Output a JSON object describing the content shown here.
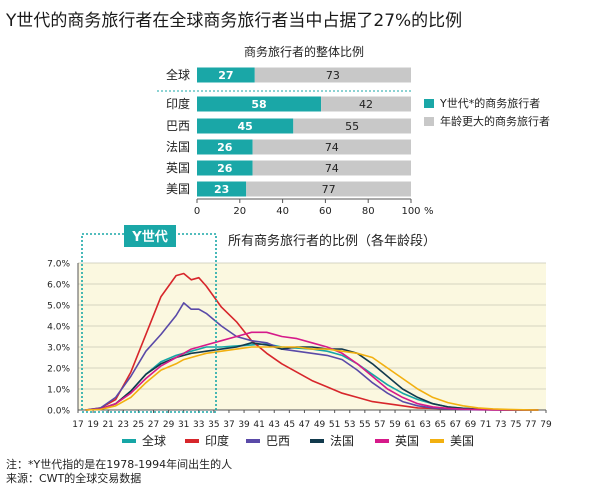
{
  "title": "Y世代的商务旅行者在全球商务旅行者当中占据了27%的比例",
  "colors": {
    "teal": "#1aa7a7",
    "gray": "#c8c8c8",
    "plot_bg": "#fbf8e0",
    "全球": "#16a6a6",
    "印度": "#d7262b",
    "巴西": "#5a4aa8",
    "法国": "#123a4d",
    "英国": "#d61a8a",
    "美国": "#f2b010"
  },
  "chart_data": [
    {
      "type": "bar",
      "stacked": true,
      "orientation": "horizontal",
      "title": "商务旅行者的整体比例",
      "categories": [
        "全球",
        "印度",
        "巴西",
        "法国",
        "英国",
        "美国"
      ],
      "series": [
        {
          "name": "Y世代*的商务旅行者",
          "values": [
            27,
            58,
            45,
            26,
            26,
            23
          ]
        },
        {
          "name": "年龄更大的商务旅行者",
          "values": [
            73,
            42,
            55,
            74,
            74,
            77
          ]
        }
      ],
      "xlim": [
        0,
        100
      ],
      "xticks": [
        "0",
        "20",
        "40",
        "60",
        "80",
        "100"
      ],
      "xunit": "%",
      "legend_position": "right"
    },
    {
      "type": "line",
      "title": "所有商务旅行者的比例（各年龄段）",
      "annotation": "Y世代",
      "annotation_range": [
        17,
        35
      ],
      "xlim": [
        17,
        79
      ],
      "ylim": [
        0,
        7
      ],
      "xticks": [
        "17",
        "19",
        "21",
        "23",
        "25",
        "27",
        "29",
        "31",
        "33",
        "35",
        "37",
        "39",
        "41",
        "43",
        "45",
        "47",
        "49",
        "51",
        "53",
        "55",
        "57",
        "59",
        "61",
        "63",
        "65",
        "67",
        "69",
        "71",
        "73",
        "75",
        "77",
        "79"
      ],
      "yticks": [
        "0.0%",
        "1.0%",
        "2.0%",
        "3.0%",
        "4.0%",
        "5.0%",
        "6.0%",
        "7.0%"
      ],
      "x": [
        18,
        20,
        22,
        24,
        26,
        28,
        30,
        31,
        32,
        33,
        34,
        36,
        38,
        40,
        42,
        44,
        46,
        48,
        50,
        52,
        54,
        56,
        58,
        60,
        62,
        64,
        66,
        68,
        70,
        72,
        74,
        76,
        78
      ],
      "series": [
        {
          "name": "全球",
          "values": [
            0,
            0.05,
            0.3,
            0.9,
            1.7,
            2.3,
            2.6,
            2.7,
            2.8,
            2.9,
            3.0,
            3.0,
            3.05,
            3.1,
            3.15,
            3.0,
            2.95,
            2.9,
            2.8,
            2.6,
            2.2,
            1.7,
            1.2,
            0.8,
            0.5,
            0.3,
            0.15,
            0.08,
            0.04,
            0.02,
            0.01,
            0,
            0
          ]
        },
        {
          "name": "印度",
          "values": [
            0,
            0.1,
            0.5,
            1.8,
            3.6,
            5.4,
            6.4,
            6.5,
            6.2,
            6.3,
            5.9,
            4.9,
            4.2,
            3.3,
            2.7,
            2.2,
            1.8,
            1.4,
            1.1,
            0.8,
            0.6,
            0.4,
            0.3,
            0.2,
            0.1,
            0.08,
            0.05,
            0.03,
            0.02,
            0.01,
            0,
            0,
            0
          ]
        },
        {
          "name": "巴西",
          "values": [
            0,
            0.1,
            0.6,
            1.6,
            2.8,
            3.6,
            4.5,
            5.1,
            4.8,
            4.8,
            4.6,
            4.0,
            3.5,
            3.3,
            3.2,
            2.9,
            2.8,
            2.7,
            2.6,
            2.4,
            1.9,
            1.3,
            0.8,
            0.4,
            0.2,
            0.1,
            0.05,
            0.02,
            0.01,
            0,
            0,
            0,
            0
          ]
        },
        {
          "name": "法国",
          "values": [
            0,
            0.05,
            0.3,
            0.9,
            1.7,
            2.2,
            2.5,
            2.6,
            2.7,
            2.75,
            2.8,
            2.9,
            3.0,
            3.2,
            3.1,
            2.9,
            3.0,
            3.0,
            2.9,
            2.9,
            2.7,
            2.2,
            1.6,
            1.0,
            0.6,
            0.3,
            0.15,
            0.08,
            0.04,
            0.02,
            0,
            0,
            0
          ]
        },
        {
          "name": "英国",
          "values": [
            0,
            0.05,
            0.3,
            0.8,
            1.5,
            2.1,
            2.5,
            2.7,
            2.9,
            3.0,
            3.1,
            3.3,
            3.5,
            3.7,
            3.7,
            3.5,
            3.4,
            3.2,
            3.0,
            2.7,
            2.2,
            1.6,
            1.0,
            0.6,
            0.3,
            0.15,
            0.08,
            0.04,
            0.02,
            0.01,
            0,
            0,
            0
          ]
        },
        {
          "name": "美国",
          "values": [
            0,
            0.03,
            0.2,
            0.6,
            1.3,
            1.9,
            2.2,
            2.4,
            2.5,
            2.6,
            2.7,
            2.8,
            2.9,
            3.0,
            3.0,
            3.0,
            3.0,
            2.9,
            2.9,
            2.8,
            2.7,
            2.5,
            2.0,
            1.5,
            1.0,
            0.6,
            0.35,
            0.2,
            0.1,
            0.05,
            0.03,
            0.01,
            0
          ]
        }
      ],
      "legend_position": "bottom"
    }
  ],
  "notes": [
    "注：*Y世代指的是在1978-1994年间出生的人",
    "来源：CWT的全球交易数据"
  ]
}
